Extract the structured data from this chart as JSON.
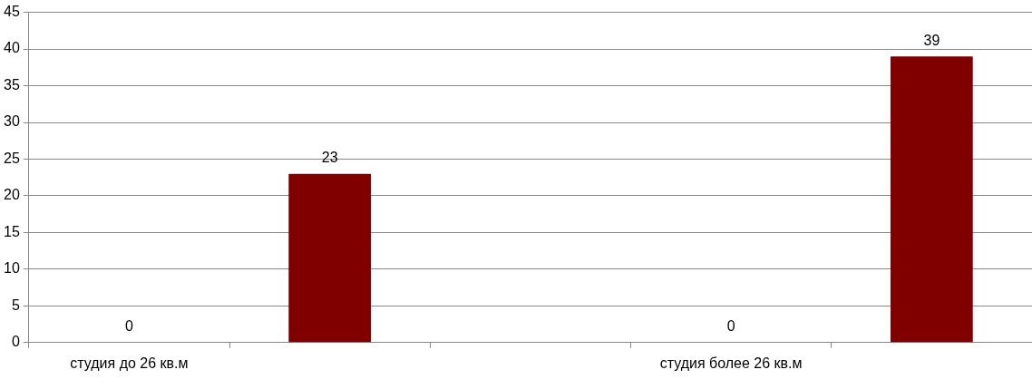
{
  "chart_data": {
    "type": "bar",
    "categories": [
      "студия до 26 кв.м",
      null,
      null,
      "студия более 26 кв.м",
      null
    ],
    "values": [
      0,
      23,
      null,
      0,
      39
    ],
    "color": "#800000",
    "ylim": [
      0,
      45
    ],
    "yticks": [
      0,
      5,
      10,
      15,
      20,
      25,
      30,
      35,
      40,
      45
    ],
    "grid": "y",
    "data_labels": true
  }
}
